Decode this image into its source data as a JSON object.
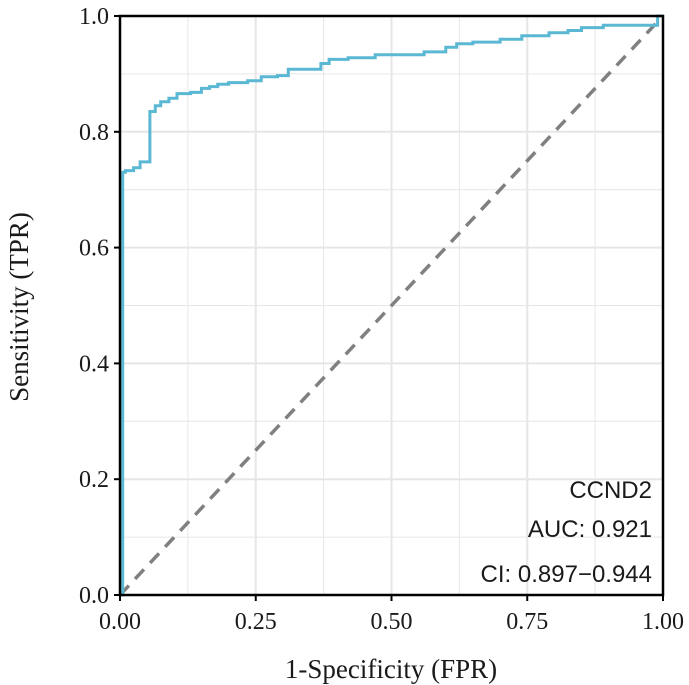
{
  "chart_data": {
    "type": "line",
    "xlabel": "1-Specificity (FPR)",
    "ylabel": "Sensitivity (TPR)",
    "xlim": [
      0,
      1
    ],
    "ylim": [
      0,
      1
    ],
    "xticks": [
      "0.00",
      "0.25",
      "0.50",
      "0.75",
      "1.00"
    ],
    "yticks": [
      "0.0",
      "0.2",
      "0.4",
      "0.6",
      "0.8",
      "1.0"
    ],
    "grid": true,
    "legend": "none",
    "colors": {
      "roc_curve": "#5BB8D4",
      "reference_line": "#808080",
      "grid": "#e6e6e6",
      "frame": "#000000"
    },
    "series": [
      {
        "x": [
          0.0,
          0.005,
          0.005,
          0.01,
          0.01,
          0.025,
          0.025,
          0.037,
          0.037,
          0.055,
          0.055,
          0.065,
          0.065,
          0.075,
          0.075,
          0.09,
          0.09,
          0.105,
          0.105,
          0.13,
          0.13,
          0.15,
          0.15,
          0.165,
          0.165,
          0.18,
          0.18,
          0.2,
          0.2,
          0.235,
          0.235,
          0.26,
          0.26,
          0.29,
          0.29,
          0.31,
          0.31,
          0.37,
          0.37,
          0.385,
          0.385,
          0.42,
          0.42,
          0.47,
          0.47,
          0.56,
          0.56,
          0.6,
          0.6,
          0.62,
          0.62,
          0.65,
          0.65,
          0.7,
          0.7,
          0.74,
          0.74,
          0.79,
          0.79,
          0.825,
          0.825,
          0.85,
          0.85,
          0.89,
          0.89,
          0.99,
          0.99,
          1.0
        ],
        "y": [
          0.0,
          0.0,
          0.73,
          0.73,
          0.733,
          0.733,
          0.738,
          0.738,
          0.748,
          0.748,
          0.835,
          0.835,
          0.845,
          0.845,
          0.852,
          0.852,
          0.858,
          0.858,
          0.866,
          0.866,
          0.868,
          0.868,
          0.875,
          0.875,
          0.878,
          0.878,
          0.882,
          0.882,
          0.885,
          0.885,
          0.888,
          0.888,
          0.895,
          0.895,
          0.897,
          0.897,
          0.908,
          0.908,
          0.918,
          0.918,
          0.925,
          0.925,
          0.928,
          0.928,
          0.933,
          0.933,
          0.938,
          0.938,
          0.946,
          0.946,
          0.952,
          0.952,
          0.955,
          0.955,
          0.96,
          0.96,
          0.966,
          0.966,
          0.971,
          0.971,
          0.975,
          0.975,
          0.98,
          0.98,
          0.984,
          0.984,
          1.0,
          1.0
        ]
      }
    ],
    "reference_line": {
      "x": [
        0,
        1
      ],
      "y": [
        0,
        1
      ],
      "style": "dashed"
    },
    "annotations": [
      "CCND2",
      "AUC: 0.921",
      "CI: 0.897−0.944"
    ]
  }
}
